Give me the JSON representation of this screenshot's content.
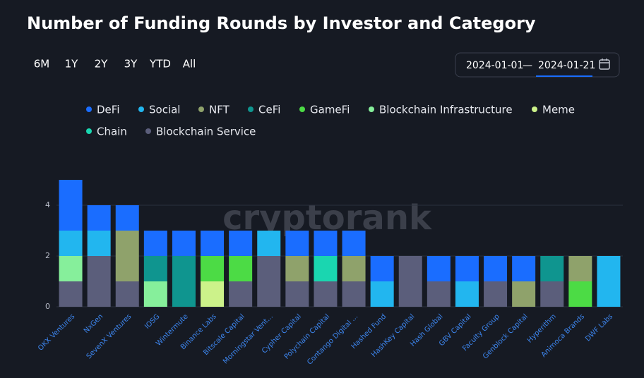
{
  "chart_data": {
    "type": "stacked_bar",
    "title": "Number of Funding Rounds by Investor and Category",
    "range_buttons": [
      "6M",
      "1Y",
      "2Y",
      "3Y",
      "YTD",
      "All"
    ],
    "date_from": "2024-01-01",
    "date_separator": "—",
    "date_to": "2024-01-21",
    "watermark": "cryptorank",
    "categories": [
      "OKX Ventures",
      "NxGen",
      "SevenX Ventures",
      "IOSG",
      "Wintermute",
      "Binance Labs",
      "Bitscale Capital",
      "Morningstar Vent...",
      "Cypher Capital",
      "Polychain Capital",
      "Contango Digital ...",
      "Hashed Fund",
      "HashKey Capital",
      "Hash Global",
      "GBV Capital",
      "Faculty Group",
      "Genblock Capital",
      "Hyperithm",
      "Animoca Brands",
      "DWF Labs"
    ],
    "series": [
      {
        "name": "DeFi",
        "color": "#1a6dff",
        "values": [
          2,
          1,
          1,
          1,
          1,
          1,
          1,
          0,
          1,
          1,
          1,
          1,
          0,
          1,
          1,
          1,
          1,
          0,
          0,
          0
        ]
      },
      {
        "name": "Social",
        "color": "#22b6ef",
        "values": [
          1,
          1,
          0,
          0,
          0,
          0,
          0,
          1,
          0,
          0,
          0,
          1,
          0,
          0,
          1,
          0,
          0,
          0,
          0,
          2
        ]
      },
      {
        "name": "NFT",
        "color": "#8fa26b",
        "values": [
          0,
          0,
          2,
          0,
          0,
          0,
          0,
          0,
          1,
          0,
          1,
          0,
          0,
          0,
          0,
          0,
          1,
          0,
          1,
          0
        ]
      },
      {
        "name": "CeFi",
        "color": "#0f958f",
        "values": [
          0,
          0,
          0,
          1,
          2,
          0,
          0,
          0,
          0,
          0,
          0,
          0,
          0,
          0,
          0,
          0,
          0,
          1,
          0,
          0
        ]
      },
      {
        "name": "GameFi",
        "color": "#4cdb45",
        "values": [
          0,
          0,
          0,
          0,
          0,
          1,
          1,
          0,
          0,
          0,
          0,
          0,
          0,
          0,
          0,
          0,
          0,
          0,
          1,
          0
        ]
      },
      {
        "name": "Blockchain Infrastructure",
        "color": "#86ef9b",
        "values": [
          1,
          0,
          0,
          1,
          0,
          0,
          0,
          0,
          0,
          0,
          0,
          0,
          0,
          0,
          0,
          0,
          0,
          0,
          0,
          0
        ]
      },
      {
        "name": "Meme",
        "color": "#ccf28a",
        "values": [
          0,
          0,
          0,
          0,
          0,
          1,
          0,
          0,
          0,
          0,
          0,
          0,
          0,
          0,
          0,
          0,
          0,
          0,
          0,
          0
        ]
      },
      {
        "name": "Chain",
        "color": "#1ad6b0",
        "values": [
          0,
          0,
          0,
          0,
          0,
          0,
          0,
          0,
          0,
          1,
          0,
          0,
          0,
          0,
          0,
          0,
          0,
          0,
          0,
          0
        ]
      },
      {
        "name": "Blockchain Service",
        "color": "#5b5e7b",
        "values": [
          1,
          2,
          1,
          0,
          0,
          0,
          1,
          2,
          1,
          1,
          1,
          0,
          2,
          1,
          0,
          1,
          0,
          1,
          0,
          0
        ]
      }
    ],
    "ylim": [
      0,
      5
    ],
    "yticks": [
      0,
      2,
      4
    ],
    "grid": true
  }
}
